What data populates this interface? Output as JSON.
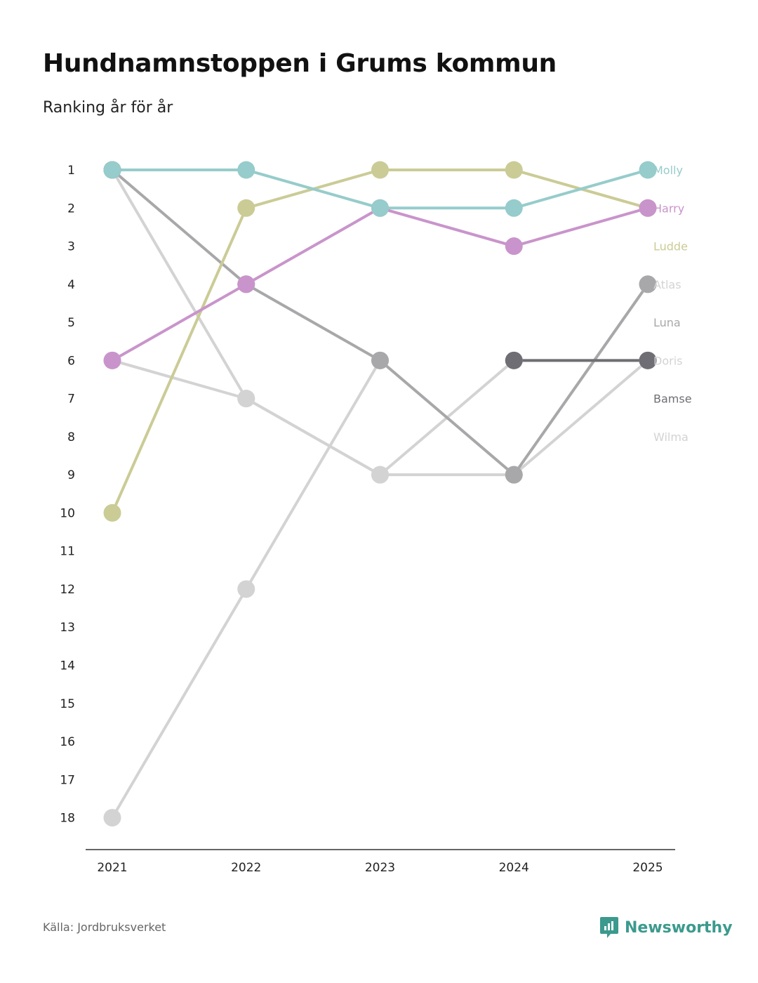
{
  "header": {
    "title": "Hundnamnstoppen i Grums kommun",
    "subtitle": "Ranking år för år"
  },
  "footer": {
    "source": "Källa: Jordbruksverket",
    "brand": "Newsworthy",
    "brand_color": "#3b9a8d"
  },
  "chart_data": {
    "type": "line",
    "title": "Hundnamnstoppen i Grums kommun",
    "subtitle": "Ranking år för år",
    "xlabel": "",
    "ylabel": "",
    "x": [
      "2021",
      "2022",
      "2023",
      "2024",
      "2025"
    ],
    "y_ticks": [
      "1",
      "2",
      "3",
      "4",
      "5",
      "6",
      "7",
      "8",
      "9",
      "10",
      "11",
      "12",
      "13",
      "14",
      "15",
      "16",
      "17",
      "18"
    ],
    "ylim": [
      1,
      18
    ],
    "y_inverted": true,
    "series": [
      {
        "name": "Molly",
        "color": "#96cccb",
        "values": [
          1,
          1,
          2,
          2,
          1
        ]
      },
      {
        "name": "Harry",
        "color": "#c994cb",
        "values": [
          6,
          4,
          2,
          3,
          2
        ]
      },
      {
        "name": "Ludde",
        "color": "#cbcb96",
        "values": [
          10,
          2,
          1,
          1,
          2
        ]
      },
      {
        "name": "Atlas",
        "color": "#d3d3d3",
        "values": [
          18,
          12,
          6,
          9,
          4
        ]
      },
      {
        "name": "Luna",
        "color": "#a8a8aa",
        "values": [
          1,
          4,
          6,
          9,
          4
        ]
      },
      {
        "name": "Doris",
        "color": "#d3d3d3",
        "values": [
          1,
          7,
          9,
          6,
          6
        ]
      },
      {
        "name": "Bamse",
        "color": "#6e6e74",
        "values": [
          1,
          null,
          null,
          6,
          6
        ]
      },
      {
        "name": "Wilma",
        "color": "#d3d3d3",
        "values": [
          6,
          7,
          9,
          9,
          6
        ]
      }
    ]
  }
}
